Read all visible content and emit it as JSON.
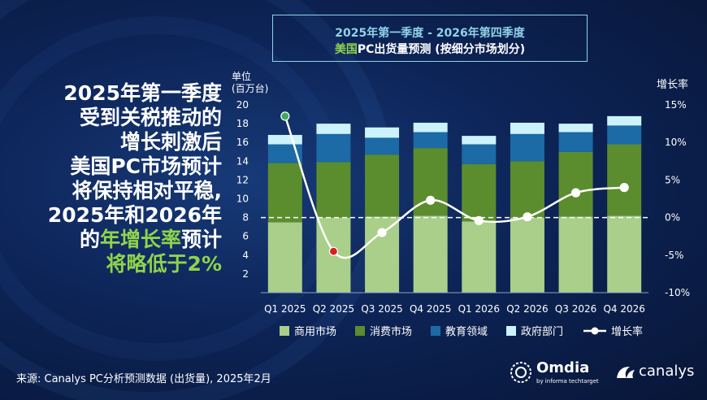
{
  "headline": {
    "lines": [
      "2025年第一季度",
      "受到关税推动的",
      "增长刺激后",
      "美国PC市场预计",
      "将保持相对平稳,",
      "2025年和2026年"
    ],
    "last_prefix": "的",
    "last_highlight": "年增长率",
    "last_suffix": "预计",
    "final_highlight": "将略低于2%"
  },
  "title": {
    "line1": "2025年第一季度 - 2026年第四季度",
    "line2_prefix": "美国",
    "line2_rest": "PC出货量预测 (按细分市场划分)"
  },
  "source": "来源: Canalys PC分析预测数据 (出货量), 2025年2月",
  "logos": {
    "omdia": "Omdia",
    "omdia_sub": "by informa techtarget",
    "canalys": "canalys"
  },
  "chart_data": {
    "type": "bar",
    "stacked": true,
    "categories": [
      "Q1 2025",
      "Q2 2025",
      "Q3 2025",
      "Q4 2025",
      "Q1 2026",
      "Q2 2026",
      "Q3 2026",
      "Q4 2026"
    ],
    "series": [
      {
        "name": "商用市场",
        "color": "#a9cf8a",
        "values": [
          7.5,
          8.0,
          8.1,
          8.2,
          7.6,
          8.0,
          8.1,
          8.2
        ]
      },
      {
        "name": "消费市场",
        "color": "#5b8d2e",
        "values": [
          6.3,
          5.9,
          6.6,
          7.2,
          6.1,
          6.0,
          6.9,
          7.6
        ]
      },
      {
        "name": "教育领域",
        "color": "#1c6aa6",
        "values": [
          2.0,
          3.0,
          1.8,
          1.7,
          2.1,
          2.9,
          2.1,
          2.0
        ]
      },
      {
        "name": "政府部门",
        "color": "#ccf3fc",
        "values": [
          1.0,
          1.1,
          1.1,
          1.0,
          0.9,
          1.2,
          0.9,
          1.0
        ]
      }
    ],
    "growth": {
      "name": "增长率",
      "values": [
        13.5,
        -4.5,
        -2.0,
        2.3,
        -0.4,
        0.1,
        3.3,
        4.0
      ],
      "highlight_colors": {
        "0": "#3daa5c",
        "1": "#d62020"
      }
    },
    "y_left": {
      "label_line1": "单位",
      "label_line2": "(百万台)",
      "ticks": [
        20,
        18,
        16,
        14,
        12,
        10,
        8,
        6,
        4,
        2
      ],
      "range": [
        0,
        20
      ]
    },
    "y_right": {
      "label": "增长率",
      "ticks": [
        "15%",
        "10%",
        "5%",
        "0%",
        "-5%",
        "-10%"
      ],
      "range": [
        -10,
        15
      ]
    },
    "legend_position": "bottom"
  }
}
